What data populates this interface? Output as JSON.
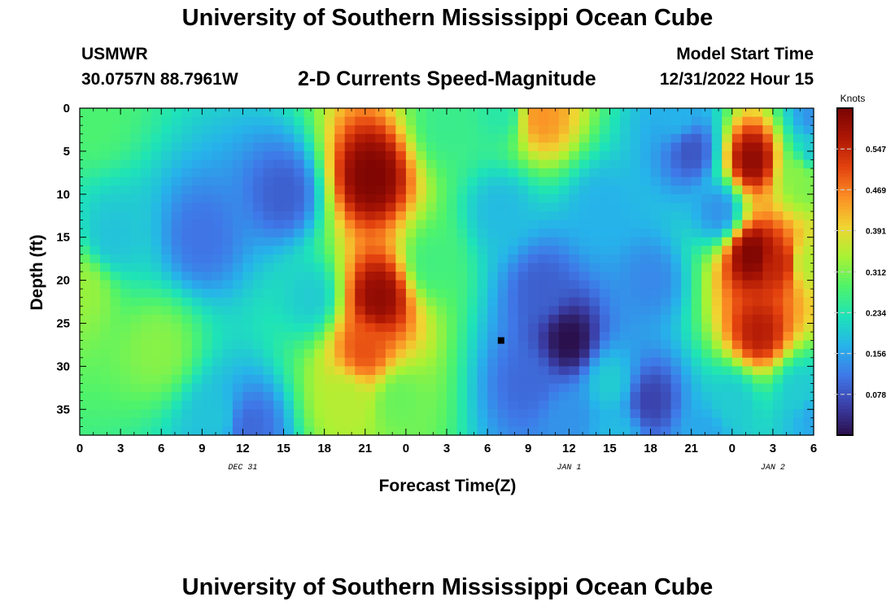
{
  "header": {
    "title": "University of Southern Mississippi Ocean Cube",
    "station": "USMWR",
    "coords": "30.0757N  88.7961W",
    "subtitle": "2-D Currents Speed-Magnitude",
    "model_start_label": "Model Start Time",
    "model_start_value": "12/31/2022 Hour 15"
  },
  "footer": {
    "title": "University of Southern Mississippi Ocean Cube"
  },
  "chart_data": {
    "type": "heatmap",
    "xlabel": "Forecast Time(Z)",
    "ylabel": "Depth (ft)",
    "x_range_hours": [
      0,
      54
    ],
    "x_ticks": [
      "0",
      "3",
      "6",
      "9",
      "12",
      "15",
      "18",
      "21",
      "0",
      "3",
      "6",
      "9",
      "12",
      "15",
      "18",
      "21",
      "0",
      "3",
      "6"
    ],
    "date_labels": [
      {
        "text": "DEC 31",
        "hour": 12
      },
      {
        "text": "JAN 1",
        "hour": 36
      },
      {
        "text": "JAN 2",
        "hour": 51
      }
    ],
    "y_range_ft": [
      0,
      38
    ],
    "y_ticks": [
      0,
      5,
      10,
      15,
      20,
      25,
      30,
      35
    ],
    "colorbar": {
      "title": "Knots",
      "min": 0,
      "max": 0.625,
      "ticks": [
        "0.078",
        "0.156",
        "0.234",
        "0.312",
        "0.391",
        "0.469",
        "0.547"
      ],
      "colors": [
        "#2a0f4a",
        "#3b3fa8",
        "#3f78e8",
        "#26b3ea",
        "#1ee3b8",
        "#4ff36b",
        "#a8f234",
        "#f0d531",
        "#fb8f25",
        "#e4430f",
        "#ad1604",
        "#7a0403"
      ]
    },
    "features": [
      {
        "hour": 2.5,
        "depth": 15,
        "speed": 0.19
      },
      {
        "hour": 0.2,
        "depth": 21,
        "speed": 0.33
      },
      {
        "hour": 1.0,
        "depth": 1,
        "speed": 0.28
      },
      {
        "hour": 5.8,
        "depth": 28,
        "speed": 0.32
      },
      {
        "hour": 9,
        "depth": 15,
        "speed": 0.11
      },
      {
        "hour": 10,
        "depth": 36,
        "speed": 0.19
      },
      {
        "hour": 12.5,
        "depth": 37,
        "speed": 0.1
      },
      {
        "hour": 15,
        "depth": 10,
        "speed": 0.09
      },
      {
        "hour": 17,
        "depth": 22,
        "speed": 0.2
      },
      {
        "hour": 21.5,
        "depth": 8,
        "speed": 0.62
      },
      {
        "hour": 22,
        "depth": 22,
        "speed": 0.6
      },
      {
        "hour": 21,
        "depth": 28,
        "speed": 0.5
      },
      {
        "hour": 19.5,
        "depth": 34,
        "speed": 0.35
      },
      {
        "hour": 23.5,
        "depth": 34,
        "speed": 0.3
      },
      {
        "hour": 26,
        "depth": 18,
        "speed": 0.27
      },
      {
        "hour": 27,
        "depth": 2,
        "speed": 0.26
      },
      {
        "hour": 31,
        "depth": 0.5,
        "speed": 0.24
      },
      {
        "hour": 34,
        "depth": 1,
        "speed": 0.45
      },
      {
        "hour": 31,
        "depth": 12,
        "speed": 0.18
      },
      {
        "hour": 34,
        "depth": 21,
        "speed": 0.09
      },
      {
        "hour": 36,
        "depth": 27,
        "speed": 0.0
      },
      {
        "hour": 33,
        "depth": 32,
        "speed": 0.1
      },
      {
        "hour": 38.5,
        "depth": 12,
        "speed": 0.17
      },
      {
        "hour": 36,
        "depth": 36,
        "speed": 0.14
      },
      {
        "hour": 42,
        "depth": 34,
        "speed": 0.06
      },
      {
        "hour": 42,
        "depth": 20,
        "speed": 0.13
      },
      {
        "hour": 39,
        "depth": 32,
        "speed": 0.2
      },
      {
        "hour": 39.5,
        "depth": 38,
        "speed": 0.18
      },
      {
        "hour": 44,
        "depth": 1,
        "speed": 0.17
      },
      {
        "hour": 45,
        "depth": 5,
        "speed": 0.08
      },
      {
        "hour": 46,
        "depth": 38,
        "speed": 0.16
      },
      {
        "hour": 47,
        "depth": 12,
        "speed": 0.14
      },
      {
        "hour": 48,
        "depth": 34,
        "speed": 0.2
      },
      {
        "hour": 49.5,
        "depth": 6,
        "speed": 0.6
      },
      {
        "hour": 49.5,
        "depth": 17,
        "speed": 0.62
      },
      {
        "hour": 51.5,
        "depth": 18,
        "speed": 0.55
      },
      {
        "hour": 50,
        "depth": 26,
        "speed": 0.56
      },
      {
        "hour": 53,
        "depth": 8,
        "speed": 0.32
      },
      {
        "hour": 54,
        "depth": 5,
        "speed": 0.2
      },
      {
        "hour": 53.5,
        "depth": 18,
        "speed": 0.35
      },
      {
        "hour": 53,
        "depth": 33,
        "speed": 0.2
      },
      {
        "hour": 54,
        "depth": 36,
        "speed": 0.16
      },
      {
        "hour": 54,
        "depth": 1,
        "speed": 0.14
      }
    ],
    "marker": {
      "hour": 31,
      "depth": 27
    }
  }
}
